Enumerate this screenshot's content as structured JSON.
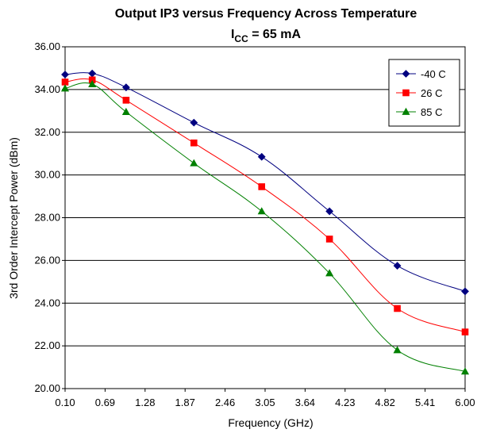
{
  "chart_data": {
    "type": "line",
    "title": "Output IP3 versus Frequency Across Temperature",
    "subtitle": {
      "prefix": "I",
      "subscript": "CC",
      "suffix": " = 65 mA"
    },
    "xlabel": "Frequency (GHz)",
    "ylabel": "3rd Order Intercept Power (dBm)",
    "xlim": [
      0.1,
      6.0
    ],
    "ylim": [
      20,
      36
    ],
    "x_ticks": [
      "0.10",
      "0.69",
      "1.28",
      "1.87",
      "2.46",
      "3.05",
      "3.64",
      "4.23",
      "4.82",
      "5.41",
      "6.00"
    ],
    "y_ticks": [
      "20.00",
      "22.00",
      "24.00",
      "26.00",
      "28.00",
      "30.00",
      "32.00",
      "34.00",
      "36.00"
    ],
    "grid": true,
    "legend_position": "top-right",
    "x": [
      0.1,
      0.5,
      1.0,
      2.0,
      3.0,
      4.0,
      5.0,
      6.0
    ],
    "series": [
      {
        "name": "-40 C",
        "color": "#000080",
        "marker": "diamond",
        "values": [
          34.7,
          34.75,
          34.1,
          32.45,
          30.85,
          28.3,
          25.75,
          24.55
        ]
      },
      {
        "name": "26 C",
        "color": "#ff0000",
        "marker": "square",
        "values": [
          34.35,
          34.45,
          33.5,
          31.5,
          29.45,
          27.0,
          23.75,
          22.65
        ]
      },
      {
        "name": "85 C",
        "color": "#008000",
        "marker": "triangle",
        "values": [
          34.05,
          34.25,
          32.95,
          30.55,
          28.3,
          25.4,
          21.8,
          20.8
        ]
      }
    ]
  }
}
